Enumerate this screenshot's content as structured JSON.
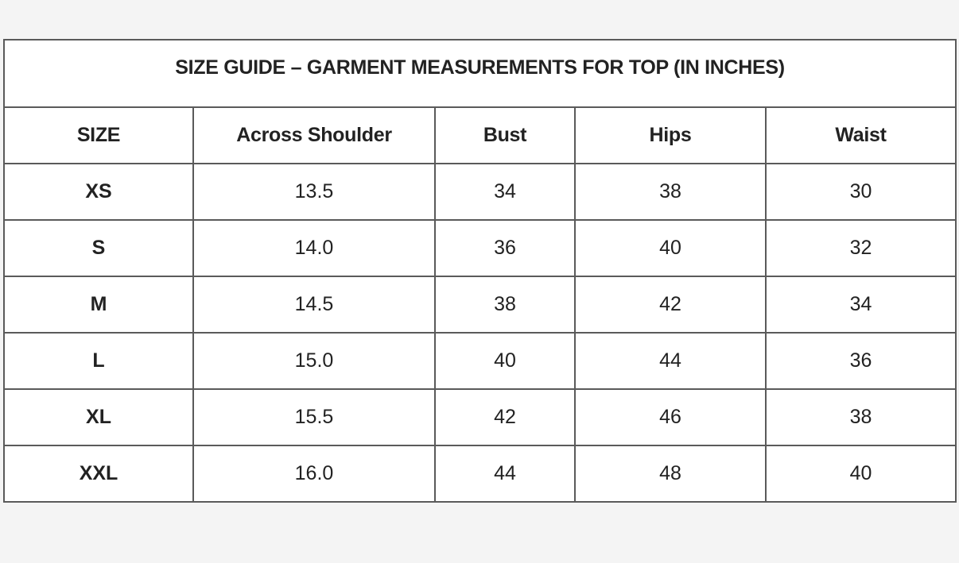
{
  "title": "SIZE GUIDE – GARMENT MEASUREMENTS FOR TOP (IN INCHES)",
  "headers": [
    "SIZE",
    "Across Shoulder",
    "Bust",
    "Hips",
    "Waist"
  ],
  "rows": [
    [
      "XS",
      "13.5",
      "34",
      "38",
      "30"
    ],
    [
      "S",
      "14.0",
      "36",
      "40",
      "32"
    ],
    [
      "M",
      "14.5",
      "38",
      "42",
      "34"
    ],
    [
      "L",
      "15.0",
      "40",
      "44",
      "36"
    ],
    [
      "XL",
      "15.5",
      "42",
      "46",
      "38"
    ],
    [
      "XXL",
      "16.0",
      "44",
      "48",
      "40"
    ]
  ]
}
